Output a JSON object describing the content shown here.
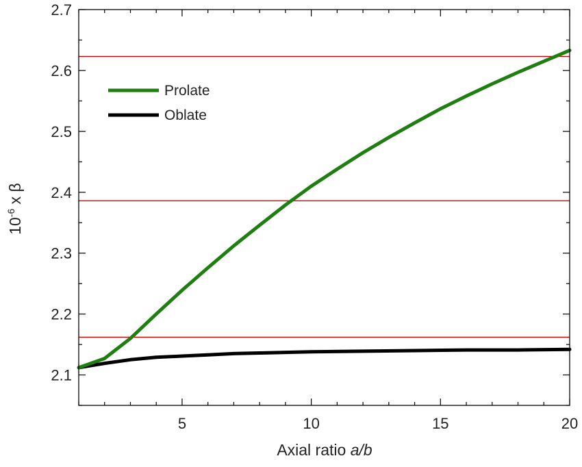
{
  "chart_data": {
    "type": "line",
    "xlabel": "Axial ratio a/b",
    "xlabel_parts": {
      "prefix": "Axial ratio ",
      "italic": "a/b"
    },
    "ylabel": "10-6 x β",
    "ylabel_parts": {
      "base": "10",
      "sup": "-6",
      "rest": " x β"
    },
    "xlim": [
      1,
      20
    ],
    "ylim": [
      2.05,
      2.7
    ],
    "x_major_ticks": [
      5,
      10,
      15,
      20
    ],
    "x_tick_labels": [
      "5",
      "10",
      "15",
      "20"
    ],
    "y_major_ticks": [
      2.1,
      2.2,
      2.3,
      2.4,
      2.5,
      2.6,
      2.7
    ],
    "y_tick_labels": [
      "2.1",
      "2.2",
      "2.3",
      "2.4",
      "2.5",
      "2.6",
      "2.7"
    ],
    "grid": false,
    "legend_position": "top-left",
    "reference_lines_y": [
      2.623,
      2.386,
      2.162
    ],
    "reference_line_color": "#cc0000",
    "series": [
      {
        "name": "Prolate",
        "color": "#1e7e10",
        "x": [
          1,
          2,
          3,
          4,
          5,
          6,
          7,
          8,
          9,
          10,
          11,
          12,
          13,
          14,
          15,
          16,
          17,
          18,
          19,
          20
        ],
        "y": [
          2.112,
          2.127,
          2.16,
          2.2,
          2.239,
          2.276,
          2.312,
          2.346,
          2.379,
          2.41,
          2.438,
          2.465,
          2.49,
          2.514,
          2.537,
          2.558,
          2.578,
          2.597,
          2.615,
          2.633
        ]
      },
      {
        "name": "Oblate",
        "color": "#000000",
        "x": [
          1,
          2,
          3,
          4,
          5,
          6,
          7,
          8,
          9,
          10,
          12,
          14,
          16,
          18,
          20
        ],
        "y": [
          2.112,
          2.119,
          2.125,
          2.129,
          2.131,
          2.133,
          2.135,
          2.136,
          2.137,
          2.138,
          2.139,
          2.14,
          2.141,
          2.141,
          2.142
        ]
      }
    ]
  }
}
